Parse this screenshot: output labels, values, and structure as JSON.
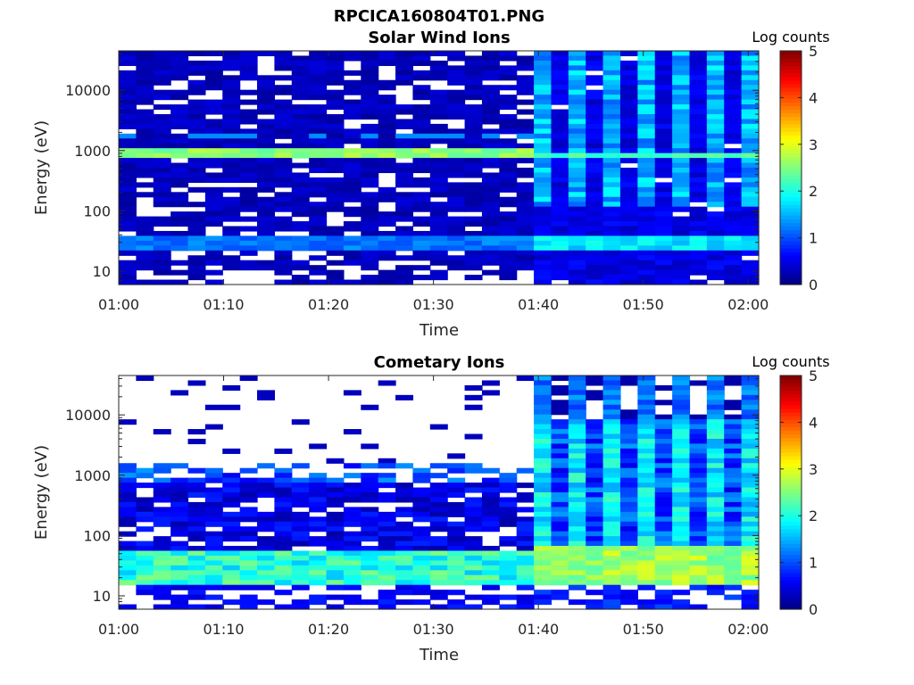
{
  "figure_title": "RPCICA160804T01.PNG",
  "chart_data": [
    {
      "type": "heatmap",
      "title": "Solar Wind Ions",
      "xlabel": "Time",
      "ylabel": "Energy (eV)",
      "x_ticks": [
        "01:00",
        "01:10",
        "01:20",
        "01:30",
        "01:40",
        "01:50",
        "02:00"
      ],
      "x_range_minutes": [
        0,
        61
      ],
      "y_scale": "log",
      "y_ticks": [
        "10",
        "100",
        "1000",
        "10000"
      ],
      "ylim": [
        6,
        45000
      ],
      "colorbar": {
        "label": "Log counts",
        "ticks": [
          "0",
          "1",
          "2",
          "3",
          "4",
          "5"
        ],
        "range": [
          0,
          5
        ],
        "colormap": "jet"
      },
      "grid": false,
      "features": [
        {
          "band": "peak",
          "energy_eV": 900,
          "level_before_01_40": 2.6,
          "level_after_01_40": 2.3
        },
        {
          "band": "low-energy",
          "energy_eV": 28,
          "level_before_01_40": 1.2,
          "level_after_01_40": 1.8
        },
        {
          "band": "high-energy bursts after 01:40",
          "energy_range_eV": [
            100,
            40000
          ],
          "level": 1.6
        }
      ]
    },
    {
      "type": "heatmap",
      "title": "Cometary Ions",
      "xlabel": "Time",
      "ylabel": "Energy (eV)",
      "x_ticks": [
        "01:00",
        "01:10",
        "01:20",
        "01:30",
        "01:40",
        "01:50",
        "02:00"
      ],
      "x_range_minutes": [
        0,
        61
      ],
      "y_scale": "log",
      "y_ticks": [
        "10",
        "100",
        "1000",
        "10000"
      ],
      "ylim": [
        6,
        45000
      ],
      "colorbar": {
        "label": "Log counts",
        "ticks": [
          "0",
          "1",
          "2",
          "3",
          "4",
          "5"
        ],
        "range": [
          0,
          5
        ],
        "colormap": "jet"
      },
      "grid": false,
      "features": [
        {
          "band": "low-energy",
          "energy_eV": 25,
          "level_before_01_40": 2.3,
          "level_after_01_40": 2.8
        },
        {
          "band": "mid-energy",
          "energy_eV": 1000,
          "level_before_01_40": 1.4,
          "level_after_01_40": 1.9
        },
        {
          "band": "broad emission after 01:40",
          "energy_range_eV": [
            100,
            20000
          ],
          "level": 1.8
        }
      ]
    }
  ]
}
